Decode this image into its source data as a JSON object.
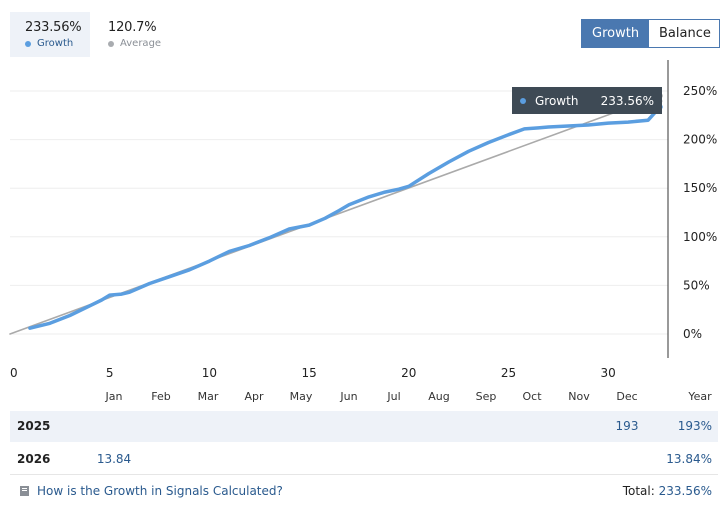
{
  "stats": {
    "growth": {
      "value": "233.56%",
      "label": "Growth"
    },
    "average": {
      "value": "120.7%",
      "label": "Average"
    }
  },
  "toggle": {
    "growth_label": "Growth",
    "balance_label": "Balance"
  },
  "tooltip": {
    "label": "Growth",
    "value": "233.56%"
  },
  "chart_data": {
    "type": "line",
    "x_ticks": [
      0,
      5,
      10,
      15,
      20,
      25,
      30
    ],
    "x_tick_labels": [
      "0",
      "5",
      "10",
      "15",
      "20",
      "25",
      "30"
    ],
    "y_ticks": [
      0,
      50,
      100,
      150,
      200,
      250
    ],
    "y_tick_labels": [
      "0%",
      "50%",
      "100%",
      "150%",
      "200%",
      "250%"
    ],
    "xlim": [
      0,
      33
    ],
    "ylim": [
      -25,
      250
    ],
    "grid": true,
    "colors": {
      "growth": "#5b9ee0",
      "average": "#aaaaaa"
    },
    "series": [
      {
        "name": "Growth",
        "x": [
          1,
          2,
          3,
          4,
          4.6,
          5,
          5.6,
          6,
          7,
          8,
          9,
          10,
          11,
          12,
          13,
          14,
          15,
          15.8,
          16.5,
          17,
          18,
          18.8,
          19.5,
          20,
          21,
          22,
          23,
          24,
          25,
          25.8,
          26.5,
          27,
          28,
          29,
          30,
          31,
          32,
          32.6
        ],
        "y": [
          6,
          11,
          19,
          29,
          35,
          40,
          41,
          43,
          52,
          59,
          66,
          75,
          85,
          91,
          99,
          108,
          112,
          119,
          127,
          133,
          141,
          146,
          149,
          152,
          165,
          177,
          188,
          197,
          205,
          211,
          212,
          213,
          214,
          215,
          217,
          218,
          220,
          233.56
        ]
      },
      {
        "name": "Average",
        "x": [
          0,
          32.6
        ],
        "y": [
          0,
          245
        ]
      }
    ]
  },
  "months": [
    "Jan",
    "Feb",
    "Mar",
    "Apr",
    "May",
    "Jun",
    "Jul",
    "Aug",
    "Sep",
    "Oct",
    "Nov",
    "Dec",
    "Year"
  ],
  "rows": [
    {
      "year": "2025",
      "cells": [
        {
          "month": "Dec",
          "value": "193"
        }
      ],
      "year_total": "193%"
    },
    {
      "year": "2026",
      "cells": [
        {
          "month": "Jan",
          "value": "13.84"
        }
      ],
      "year_total": "13.84%"
    }
  ],
  "footer": {
    "link_text": "How is the Growth in Signals Calculated?",
    "total_label": "Total:",
    "total_value": "233.56%"
  }
}
